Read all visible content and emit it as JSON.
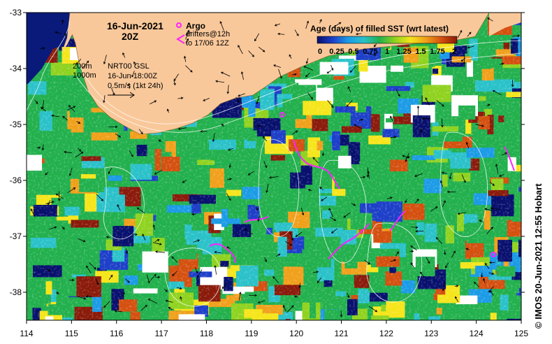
{
  "header": {
    "date": "16-Jun-2021",
    "time": "20Z"
  },
  "legend": {
    "argo_label": "Argo",
    "drifters_line1": "drifters@12h",
    "drifters_line2": "to 17/06 12Z",
    "colorbar_title": "Age (days) of filled SST (wrt latest)",
    "colorbar_ticks": [
      "0",
      "0.25",
      "0.5",
      "0.75",
      "1",
      "1.25",
      "1.5",
      "1.75",
      "2"
    ],
    "colorbar_colors": [
      "#08106e",
      "#1d3fc8",
      "#1b9be6",
      "#2ac1c9",
      "#22b04d",
      "#8fd21f",
      "#f5e51a",
      "#f0a01a",
      "#d4500f",
      "#8a1a0a"
    ]
  },
  "annotations": {
    "contour_200": "200m",
    "contour_1000": "1000m",
    "product": "NRT00 GSL",
    "product_time": "16-Jun 18:00Z",
    "scale_vector": "0.5m/s (1kt 24h)"
  },
  "axes": {
    "lon_ticks": [
      "114",
      "115",
      "116",
      "117",
      "118",
      "119",
      "120",
      "121",
      "122",
      "123",
      "124",
      "125"
    ],
    "lat_ticks": [
      "-33",
      "-34",
      "-35",
      "-36",
      "-37",
      "-38"
    ],
    "lon_range": [
      114,
      125
    ],
    "lat_range": [
      -38.5,
      -33
    ]
  },
  "credit": "© IMOS 20-Jun-2021 12:55 Hobart",
  "colors": {
    "land": "#f9c89a",
    "deep_ocean": "#0a1a7a"
  }
}
